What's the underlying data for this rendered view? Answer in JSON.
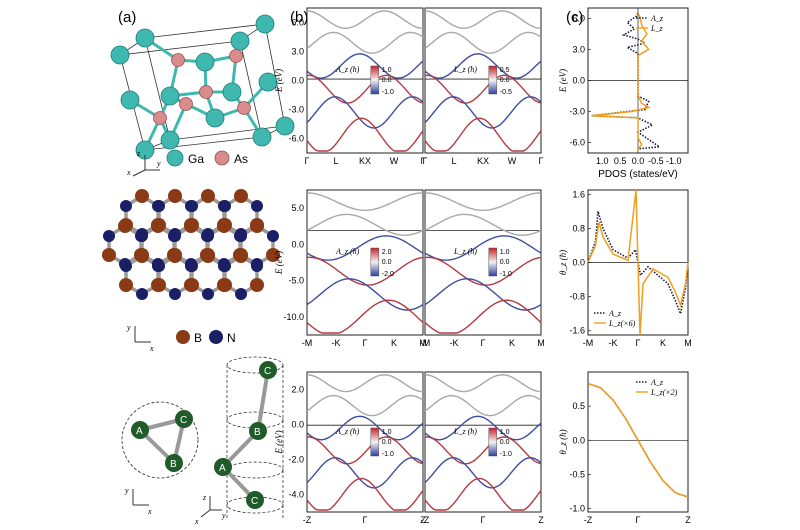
{
  "panel_labels": {
    "a": "(a)",
    "b": "(b)",
    "c": "(c)"
  },
  "crystal": {
    "legend": [
      "Ga",
      "As"
    ],
    "axes": [
      "z",
      "x",
      "y"
    ]
  },
  "honeycomb": {
    "legend": [
      "B",
      "N"
    ],
    "axes": [
      "y",
      "x"
    ]
  },
  "chain": {
    "atoms": [
      "A",
      "B",
      "C"
    ],
    "axes_left": [
      "y",
      "x"
    ],
    "axes_right": [
      "z",
      "y",
      "x"
    ]
  },
  "colors": {
    "ga": "#3fb8b0",
    "as": "#d98c8c",
    "boron": "#8a3a14",
    "nitrogen": "#1a1f66",
    "chain_atom": "#1f5c2a",
    "orange": "#f0a01e",
    "red": "#c8202a",
    "blue": "#2b3fa0"
  },
  "bands": {
    "row1": {
      "ylabel": "E (eV)",
      "yticks": [
        "6.0",
        "3.0",
        "0.0",
        "-3.0",
        "-6.0"
      ],
      "xticks": [
        "Γ",
        "L",
        "KX",
        "W",
        "Γ"
      ],
      "left_title": "A_z (ħ)",
      "right_title": "L_z (ħ)",
      "left_cbar": [
        "1.0",
        "0.0",
        "-1.0"
      ],
      "right_cbar": [
        "0.5",
        "0.0",
        "-0.5"
      ]
    },
    "row2": {
      "ylabel": "E (eV)",
      "yticks": [
        "5.0",
        "0.0",
        "-5.0",
        "-10.0"
      ],
      "xticks": [
        "-M",
        "-K",
        "Γ",
        "K",
        "M"
      ],
      "left_title": "A_z (ħ)",
      "right_title": "L_z (ħ)",
      "left_cbar": [
        "2.0",
        "0.0",
        "-2.0"
      ],
      "right_cbar": [
        "1.0",
        "0.0",
        "-1.0"
      ]
    },
    "row3": {
      "ylabel": "E (eV)",
      "yticks": [
        "2.0",
        "0.0",
        "-2.0",
        "-4.0"
      ],
      "xticks": [
        "-Z",
        "Γ",
        "Z"
      ],
      "left_title": "A_z (ħ)",
      "right_title": "L_z (ħ)",
      "left_cbar": [
        "1.0",
        "0.0",
        "-1.0"
      ],
      "right_cbar": [
        "1.0",
        "0.0",
        "-1.0"
      ]
    }
  },
  "chart_data": [
    {
      "type": "line",
      "panel": "c-top",
      "ylabel": "E (eV)",
      "xlabel": "PDOS (states/eV)",
      "xticks": [
        "1.0",
        "0.5",
        "0.0",
        "-0.5",
        "-1.0"
      ],
      "yticks": [
        "6.0",
        "3.0",
        "0.0",
        "-3.0",
        "-6.0"
      ],
      "ylim": [
        -7,
        7
      ],
      "xlim": [
        1.4,
        -1.4
      ],
      "legend": [
        "A_z",
        "L_z"
      ],
      "series": [
        {
          "name": "A_z",
          "style": "dotted",
          "points": [
            [
              0.0,
              6.5
            ],
            [
              0.05,
              6.2
            ],
            [
              0.3,
              5.6
            ],
            [
              0.1,
              5.0
            ],
            [
              0.4,
              4.4
            ],
            [
              0.0,
              4.0
            ],
            [
              -0.2,
              3.6
            ],
            [
              0.3,
              3.2
            ],
            [
              0.0,
              2.6
            ],
            [
              0.0,
              0.0
            ],
            [
              0.0,
              -1.5
            ],
            [
              -0.3,
              -2.0
            ],
            [
              -0.2,
              -2.8
            ],
            [
              1.3,
              -3.4
            ],
            [
              0.0,
              -3.6
            ],
            [
              -0.4,
              -4.3
            ],
            [
              0.0,
              -5.0
            ],
            [
              -0.6,
              -6.4
            ],
            [
              0.0,
              -6.6
            ]
          ]
        },
        {
          "name": "L_z",
          "style": "solid",
          "points": [
            [
              0.0,
              6.5
            ],
            [
              -0.05,
              6.2
            ],
            [
              -0.1,
              5.4
            ],
            [
              -0.25,
              4.5
            ],
            [
              -0.1,
              3.8
            ],
            [
              -0.3,
              3.0
            ],
            [
              0.0,
              2.4
            ],
            [
              0.0,
              0.0
            ],
            [
              0.0,
              -1.4
            ],
            [
              -0.1,
              -2.2
            ],
            [
              -0.3,
              -2.6
            ],
            [
              0.2,
              -3.0
            ],
            [
              1.3,
              -3.4
            ],
            [
              0.0,
              -3.6
            ],
            [
              0.0,
              -5.5
            ],
            [
              -0.1,
              -6.2
            ],
            [
              0.0,
              -6.6
            ]
          ]
        }
      ]
    },
    {
      "type": "line",
      "panel": "c-middle",
      "ylabel": "θ_z (ħ)",
      "xticks": [
        "-M",
        "-K",
        "Γ",
        "K",
        "M"
      ],
      "yticks": [
        "1.6",
        "0.8",
        "0.0",
        "-0.8",
        "-1.6"
      ],
      "ylim": [
        -1.7,
        1.7
      ],
      "legend": [
        "A_z",
        "L_z(×6)"
      ],
      "series": [
        {
          "name": "A_z",
          "style": "dotted",
          "points": [
            [
              -1.0,
              0.0
            ],
            [
              -0.85,
              0.5
            ],
            [
              -0.8,
              1.2
            ],
            [
              -0.7,
              0.8
            ],
            [
              -0.5,
              0.3
            ],
            [
              -0.2,
              0.1
            ],
            [
              -0.05,
              0.3
            ],
            [
              0.0,
              0.0
            ],
            [
              0.05,
              -0.3
            ],
            [
              0.2,
              -0.1
            ],
            [
              0.4,
              -0.3
            ],
            [
              0.6,
              -0.5
            ],
            [
              0.75,
              -0.9
            ],
            [
              0.85,
              -1.2
            ],
            [
              0.95,
              -0.6
            ],
            [
              1.0,
              0.0
            ]
          ]
        },
        {
          "name": "L_z(×6)",
          "style": "solid",
          "points": [
            [
              -1.0,
              0.0
            ],
            [
              -0.85,
              0.4
            ],
            [
              -0.78,
              0.95
            ],
            [
              -0.7,
              0.6
            ],
            [
              -0.5,
              0.2
            ],
            [
              -0.2,
              0.05
            ],
            [
              -0.04,
              1.7
            ],
            [
              0.0,
              0.0
            ],
            [
              0.04,
              -1.7
            ],
            [
              0.1,
              -0.5
            ],
            [
              0.3,
              -0.15
            ],
            [
              0.6,
              -0.35
            ],
            [
              0.75,
              -0.7
            ],
            [
              0.85,
              -1.0
            ],
            [
              0.95,
              -0.5
            ],
            [
              1.0,
              0.0
            ]
          ]
        }
      ]
    },
    {
      "type": "line",
      "panel": "c-bottom",
      "ylabel": "θ_z (ħ)",
      "xticks": [
        "-Z",
        "Γ",
        "Z"
      ],
      "yticks": [
        "0.5",
        "0.0",
        "-0.5",
        "-1.0"
      ],
      "ylim": [
        -1.05,
        1.0
      ],
      "legend": [
        "A_z",
        "L_z(×2)"
      ],
      "series": [
        {
          "name": "A_z",
          "style": "dotted",
          "x": [
            -1.0,
            -0.75,
            -0.5,
            -0.25,
            0.0,
            0.25,
            0.5,
            0.75,
            1.0
          ],
          "values": [
            0.83,
            0.77,
            0.59,
            0.32,
            0.0,
            -0.32,
            -0.59,
            -0.77,
            -0.83
          ]
        },
        {
          "name": "L_z(×2)",
          "style": "solid",
          "x": [
            -1.0,
            -0.75,
            -0.5,
            -0.25,
            0.0,
            0.25,
            0.5,
            0.75,
            1.0
          ],
          "values": [
            0.83,
            0.77,
            0.59,
            0.32,
            0.0,
            -0.32,
            -0.59,
            -0.77,
            -0.83
          ]
        }
      ]
    }
  ]
}
